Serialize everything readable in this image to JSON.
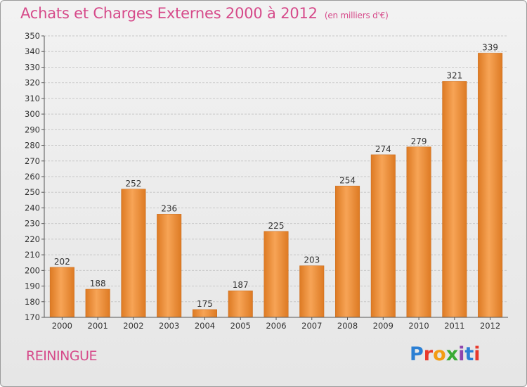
{
  "title": {
    "main": "Achats et Charges Externes 2000 à 2012",
    "unit": "(en milliers d'€)"
  },
  "commune": "REININGUE",
  "logo": {
    "text": "Proxiti",
    "letters": [
      {
        "ch": "P",
        "color": "#2b7fd4"
      },
      {
        "ch": "r",
        "color": "#e8392b"
      },
      {
        "ch": "o",
        "color": "#f39c12"
      },
      {
        "ch": "x",
        "color": "#3aaa35"
      },
      {
        "ch": "i",
        "color": "#8e44ad"
      },
      {
        "ch": "t",
        "color": "#2b7fd4"
      },
      {
        "ch": "i",
        "color": "#e8392b"
      }
    ]
  },
  "colors": {
    "title": "#d64a8a",
    "bar_light": "#f7a456",
    "bar_dark": "#dd7a23",
    "grid": "#c8c8c8",
    "axis_text": "#333333"
  },
  "chart_data": {
    "type": "bar",
    "categories": [
      "2000",
      "2001",
      "2002",
      "2003",
      "2004",
      "2005",
      "2006",
      "2007",
      "2008",
      "2009",
      "2010",
      "2011",
      "2012"
    ],
    "values": [
      202,
      188,
      252,
      236,
      175,
      187,
      225,
      203,
      254,
      274,
      279,
      321,
      339
    ],
    "ylim": [
      170,
      350
    ],
    "ytick_step": 10,
    "grid": true,
    "legend": "none",
    "xlabel": "",
    "ylabel": ""
  }
}
